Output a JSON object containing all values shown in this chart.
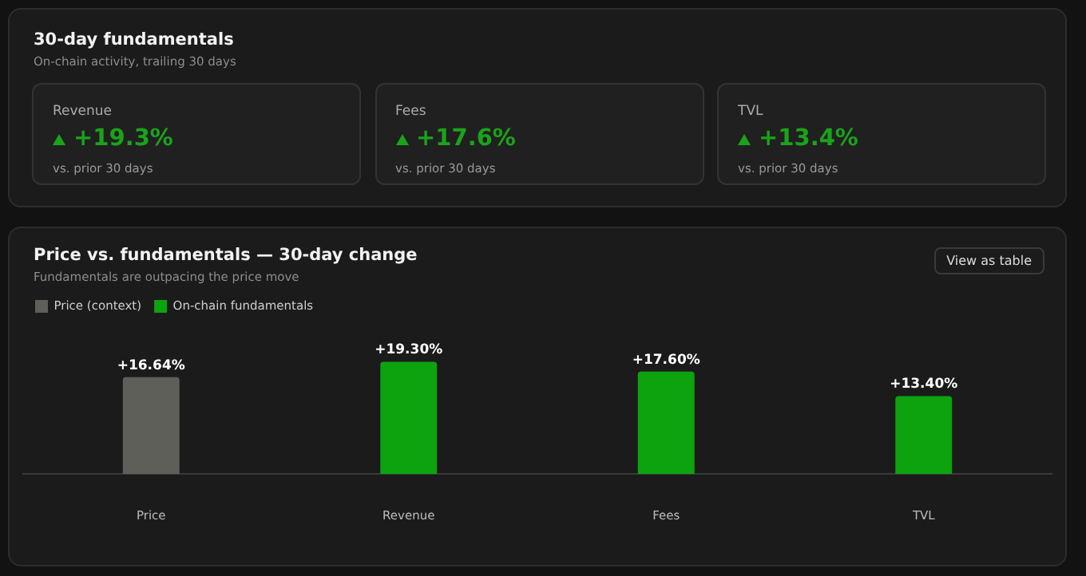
{
  "chart_data": [
    {
      "type": "other",
      "title": "30-day fundamentals",
      "subtitle": "On-chain activity, trailing 30 days",
      "categories": [
        "Revenue",
        "Fees",
        "TVL"
      ],
      "value_labels": [
        "+19.3%",
        "+17.6%",
        "+13.4%"
      ],
      "annotations": [
        "vs. prior 30 days",
        "vs. prior 30 days",
        "vs. prior 30 days"
      ]
    },
    {
      "type": "bar",
      "title": "Price vs. fundamentals — 30-day change",
      "subtitle": "Fundamentals are outpacing the price move",
      "categories": [
        "Price",
        "Revenue",
        "Fees",
        "TVL"
      ],
      "stacked": true,
      "series": [
        {
          "name": "Price (context)",
          "color": "#5f5f5a",
          "values": [
            16.64,
            null,
            null,
            null
          ],
          "value_labels": [
            "+16.64%",
            null,
            null,
            null
          ]
        },
        {
          "name": "On-chain fundamentals",
          "color": "#0ca30f",
          "values": [
            null,
            19.3,
            17.6,
            13.4
          ],
          "value_labels": [
            null,
            "+19.30%",
            "+17.60%",
            "+13.40%"
          ]
        }
      ],
      "legend": "top left",
      "tick_labels": "x",
      "annotations": [
        "View as table"
      ]
    }
  ]
}
